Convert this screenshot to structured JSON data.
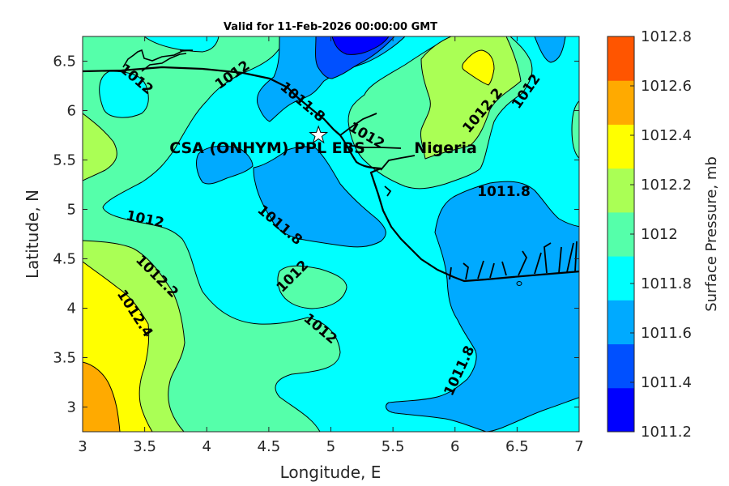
{
  "chart_data": {
    "type": "contour",
    "title": "Valid for 11-Feb-2026 00:00:00 GMT",
    "xlabel": "Longitude, E",
    "ylabel": "Latitude, N",
    "xlim": [
      3,
      7
    ],
    "ylim": [
      2.75,
      6.75
    ],
    "xticks": [
      "3",
      "3.5",
      "4",
      "4.5",
      "5",
      "5.5",
      "6",
      "6.5",
      "7"
    ],
    "yticks": [
      "3",
      "3.5",
      "4",
      "4.5",
      "5",
      "5.5",
      "6",
      "6.5"
    ],
    "colorbar": {
      "label": "Surface Pressure, mb",
      "ticks": [
        "1011.2",
        "1011.4",
        "1011.6",
        "1011.8",
        "1012",
        "1012.2",
        "1012.4",
        "1012.6",
        "1012.8"
      ],
      "colors": [
        "#0000ff",
        "#0050ff",
        "#00aaff",
        "#00ffff",
        "#55ffaa",
        "#aaff55",
        "#ffff00",
        "#ffaa00"
      ]
    },
    "top_color": "#ff5500",
    "contour_labels": [
      "1012",
      "1012",
      "1011.8",
      "1012",
      "1012.2",
      "1012",
      "1011.8",
      "1012",
      "1011.8",
      "1012.2",
      "1012",
      "1012.4",
      "1012",
      "1011.8"
    ],
    "annotations": {
      "site": "CSA (ONHYM) PPL EBS",
      "country": "Nigeria",
      "site_lon": 4.9,
      "site_lat": 5.75
    }
  }
}
